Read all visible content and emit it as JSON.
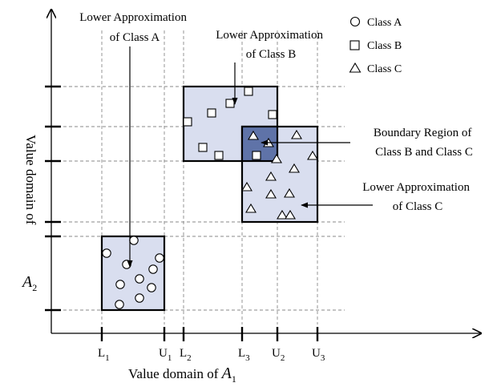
{
  "colors": {
    "region_fill": "#d9deef",
    "boundary_fill": "#5f73a8",
    "marker_stroke": "#000000"
  },
  "legend": [
    {
      "shape": "circle",
      "label": "Class A"
    },
    {
      "shape": "square",
      "label": "Class B"
    },
    {
      "shape": "triangle",
      "label": "Class C"
    }
  ],
  "x_axis": {
    "title_prefix": "Value domain of ",
    "symbol": "A",
    "subscript": "1",
    "ticks": [
      {
        "letter": "L",
        "sub": "1"
      },
      {
        "letter": "U",
        "sub": "1"
      },
      {
        "letter": "L",
        "sub": "2"
      },
      {
        "letter": "L",
        "sub": "3"
      },
      {
        "letter": "U",
        "sub": "2"
      },
      {
        "letter": "U",
        "sub": "3"
      }
    ]
  },
  "y_axis": {
    "title_prefix": "Value domain of",
    "symbol": "A",
    "subscript": "2"
  },
  "annotations": {
    "lower_a": [
      "Lower Approximation",
      "of Class A"
    ],
    "lower_b": [
      "Lower Approximation",
      "of Class B"
    ],
    "boundary_bc": [
      "Boundary Region of",
      "Class B and Class C"
    ],
    "lower_c": [
      "Lower Approximation",
      "of Class C"
    ]
  },
  "regions": [
    {
      "id": "lower-approximation-class-a",
      "class": "A"
    },
    {
      "id": "lower-approximation-class-b",
      "class": "B"
    },
    {
      "id": "lower-approximation-class-c",
      "class": "C"
    },
    {
      "id": "boundary-region-b-c",
      "class": "B/C"
    }
  ]
}
